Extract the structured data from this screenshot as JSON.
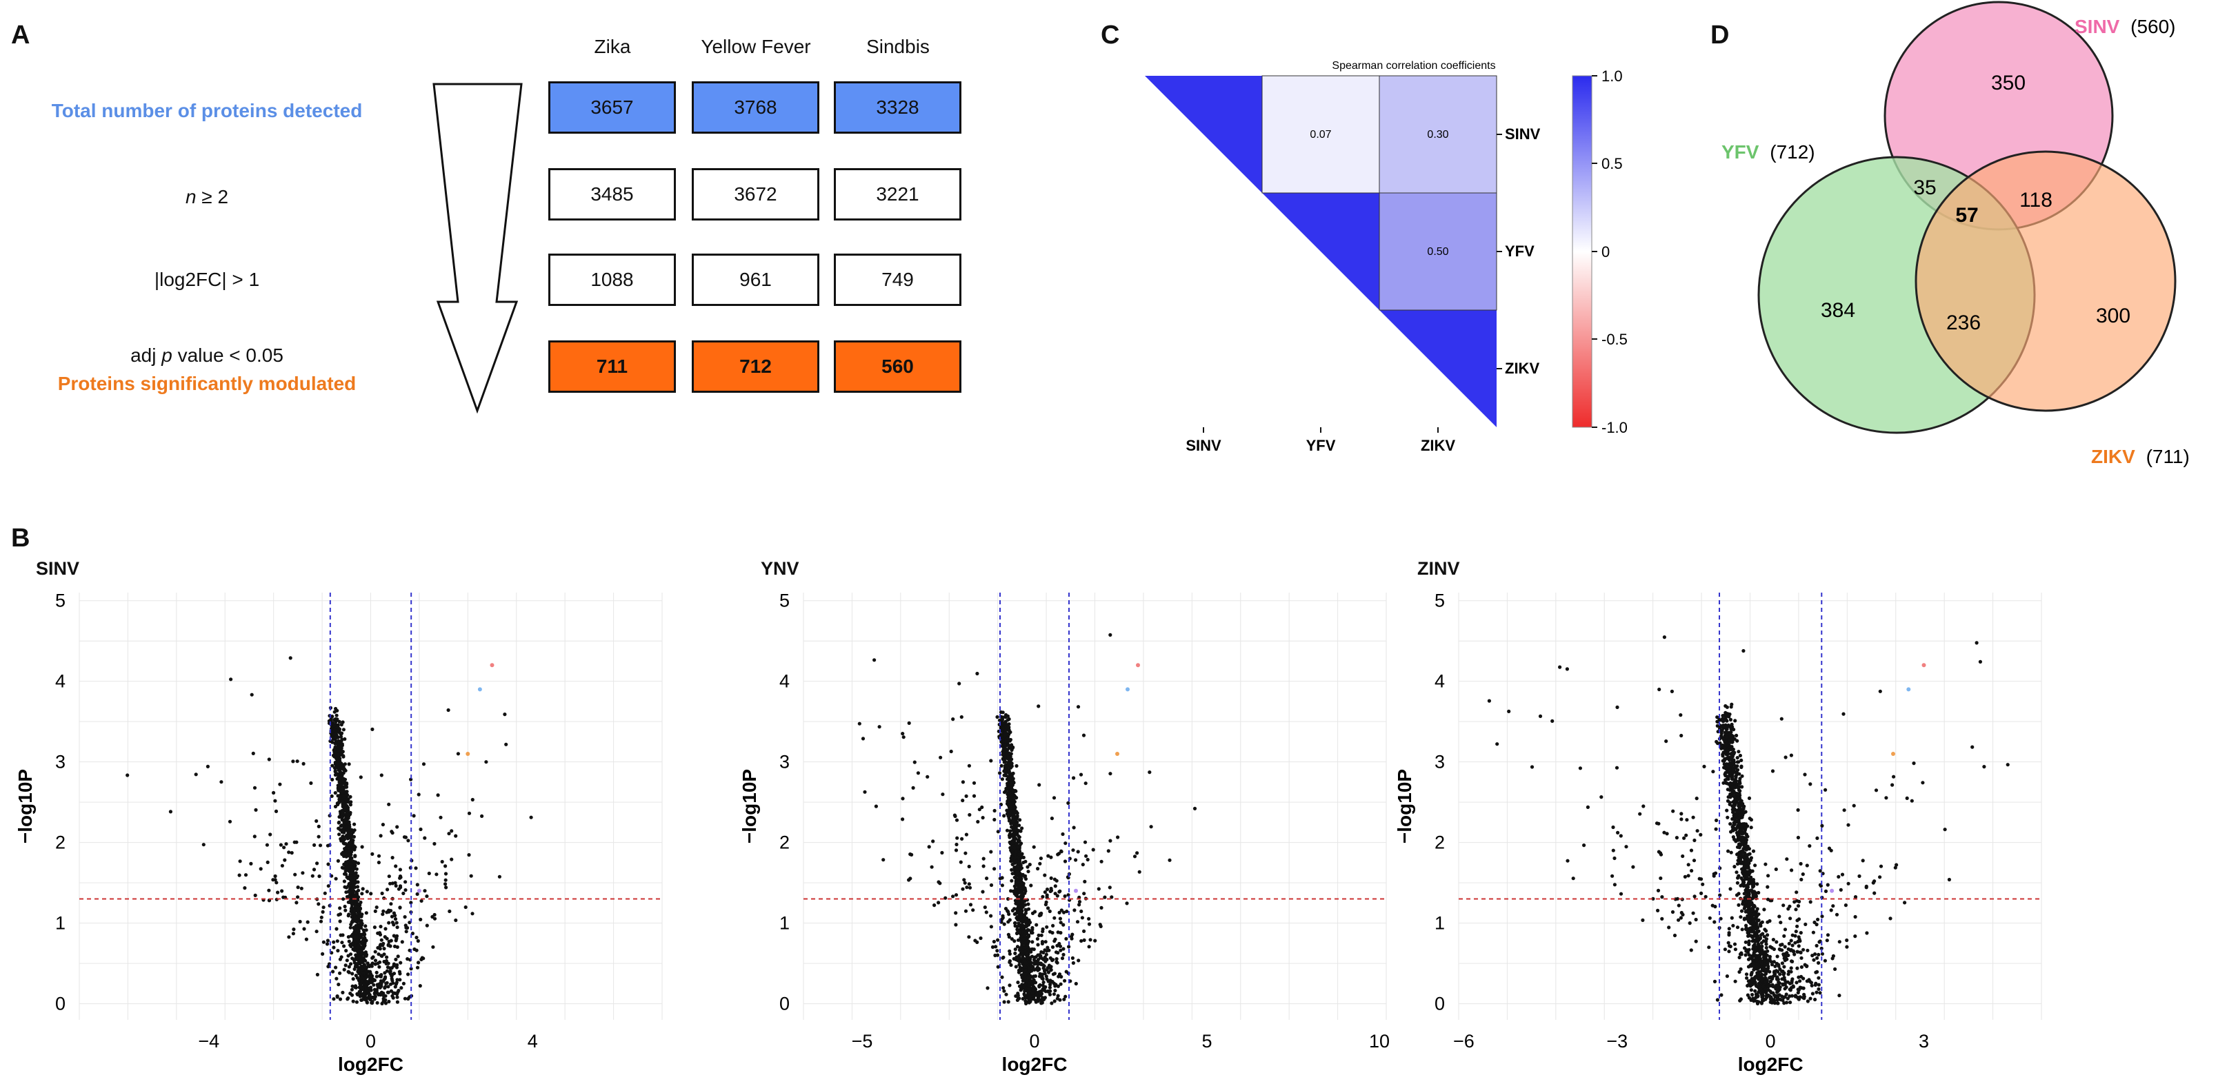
{
  "panels": {
    "A": "A",
    "B": "B",
    "C": "C",
    "D": "D"
  },
  "panelA": {
    "columns": [
      "Zika",
      "Yellow Fever",
      "Sindbis"
    ],
    "rows": [
      {
        "label": "Total number of proteins detected",
        "values": [
          "3657",
          "3768",
          "3328"
        ],
        "label_color": "#5b8fe6",
        "fill": "#5e90f5"
      },
      {
        "label_pre": "n",
        "label_post": " ≥ 2",
        "values": [
          "3485",
          "3672",
          "3221"
        ],
        "fill": "#ffffff"
      },
      {
        "label": "|log2FC| > 1",
        "values": [
          "1088",
          "961",
          "749"
        ],
        "fill": "#ffffff"
      },
      {
        "label_pre": "adj ",
        "label_italic": "p",
        "label_post": " value < 0.05",
        "label2": "Proteins significantly modulated",
        "label2_color": "#ee7a1e",
        "values": [
          "711",
          "712",
          "560"
        ],
        "fill": "#ff6a10"
      }
    ]
  },
  "panelC": {
    "title": "Spearman correlation coefficients",
    "row_labels": [
      "SINV",
      "YFV",
      "ZIKV"
    ],
    "col_labels": [
      "SINV",
      "YFV",
      "ZIKV"
    ],
    "cell_labels": {
      "sinv_yfv": "0.07",
      "sinv_zikv": "0.30",
      "yfv_zikv": "0.50"
    },
    "colorbar_ticks": [
      "1.0",
      "0.5",
      "0",
      "-0.5",
      "-1.0"
    ],
    "colors": {
      "diag": "#3333ee",
      "c007": "#eeeefd",
      "c030": "#c4c4f7",
      "c050": "#9d9df2"
    }
  },
  "panelD": {
    "sets": [
      {
        "name": "SINV",
        "count": "(560)",
        "color": "#f6a9cc",
        "name_color": "#ef6aa8"
      },
      {
        "name": "YFV",
        "count": "(712)",
        "color": "#a6e0a6",
        "name_color": "#6cc46c"
      },
      {
        "name": "ZIKV",
        "count": "(711)",
        "color": "#fdab76",
        "name_color": "#ee7a1e"
      }
    ],
    "regions": {
      "sinv_only": "350",
      "yfv_only": "384",
      "zikv_only": "300",
      "sinv_yfv": "35",
      "sinv_zikv": "118",
      "yfv_zikv": "236",
      "all": "57"
    }
  },
  "panelB": {
    "ylabel": "−log10P",
    "xlabel": "log2FC",
    "plots": [
      {
        "name": "SINV",
        "xticks": [
          "−4",
          "0",
          "4"
        ],
        "yticks": [
          "0",
          "1",
          "2",
          "3",
          "4",
          "5"
        ]
      },
      {
        "name": "YNV",
        "xticks": [
          "−5",
          "0",
          "5",
          "10"
        ],
        "yticks": [
          "0",
          "1",
          "2",
          "3",
          "4",
          "5"
        ]
      },
      {
        "name": "ZINV",
        "xticks": [
          "−6",
          "−3",
          "0",
          "3"
        ],
        "yticks": [
          "0",
          "1",
          "2",
          "3",
          "4",
          "5"
        ]
      }
    ]
  },
  "chart_data": [
    {
      "type": "scatter",
      "title": "SINV",
      "xlabel": "log2FC",
      "ylabel": "−log10P",
      "xlim": [
        -7.2,
        7.2
      ],
      "ylim": [
        -0.2,
        5.1
      ],
      "thresholds": {
        "x": [
          -1,
          1
        ],
        "y": 1.3
      }
    },
    {
      "type": "scatter",
      "title": "YNV",
      "xlabel": "log2FC",
      "ylabel": "−log10P",
      "xlim": [
        -6.7,
        10.2
      ],
      "ylim": [
        -0.2,
        5.1
      ],
      "thresholds": {
        "x": [
          -1,
          1
        ],
        "y": 1.3
      }
    },
    {
      "type": "scatter",
      "title": "ZINV",
      "xlabel": "log2FC",
      "ylabel": "−log10P",
      "xlim": [
        -6.1,
        5.3
      ],
      "ylim": [
        -0.2,
        5.1
      ],
      "thresholds": {
        "x": [
          -1,
          1
        ],
        "y": 1.3
      }
    }
  ]
}
